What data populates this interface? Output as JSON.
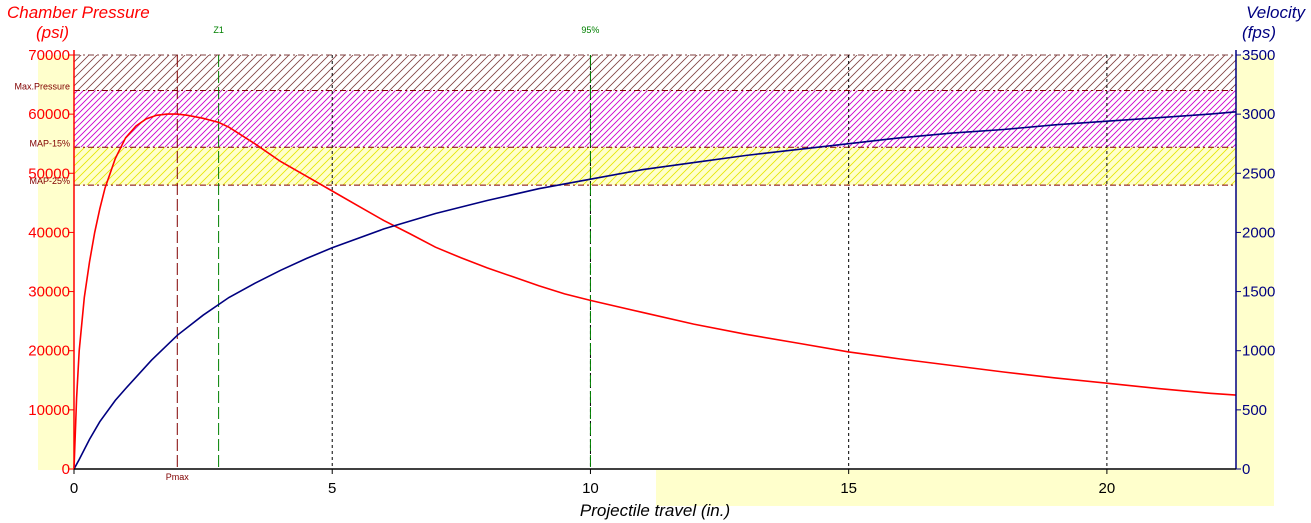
{
  "chart_data": {
    "type": "line",
    "xlabel": "Projectile travel (in.)",
    "xlim": [
      0,
      22.5
    ],
    "x_ticks": [
      0,
      5,
      10,
      15,
      20
    ],
    "y_left": {
      "label_line1": "Chamber Pressure",
      "label_line2": "(psi)",
      "lim": [
        0,
        70000
      ],
      "ticks": [
        0,
        10000,
        20000,
        30000,
        40000,
        50000,
        60000,
        70000
      ],
      "color": "#ff0000"
    },
    "y_right": {
      "label_line1": "Velocity",
      "label_line2": "(fps)",
      "lim": [
        0,
        3500
      ],
      "ticks": [
        0,
        500,
        1000,
        1500,
        2000,
        2500,
        3000,
        3500
      ],
      "color": "#000080"
    },
    "grid": true,
    "series": [
      {
        "axis": "left",
        "color": "#ff0000",
        "x": [
          0,
          0.05,
          0.1,
          0.2,
          0.3,
          0.4,
          0.5,
          0.6,
          0.8,
          1.0,
          1.2,
          1.4,
          1.6,
          1.8,
          2.0,
          2.2,
          2.5,
          2.8,
          3.0,
          3.5,
          4.0,
          4.5,
          5.0,
          5.5,
          6.0,
          6.5,
          7.0,
          7.5,
          8.0,
          8.5,
          9.0,
          9.5,
          10.0,
          11.0,
          12.0,
          13.0,
          14.0,
          15.0,
          16.0,
          17.0,
          18.0,
          19.0,
          20.0,
          21.0,
          22.0,
          22.5
        ],
        "values": [
          0,
          12000,
          20000,
          29000,
          35000,
          40000,
          44000,
          47500,
          52500,
          56000,
          58000,
          59200,
          59800,
          60000,
          60000,
          59800,
          59300,
          58600,
          57800,
          55000,
          52000,
          49500,
          47000,
          44500,
          42000,
          39800,
          37500,
          35700,
          34000,
          32500,
          31000,
          29600,
          28500,
          26500,
          24500,
          22800,
          21300,
          19800,
          18600,
          17500,
          16400,
          15400,
          14500,
          13600,
          12800,
          12500
        ]
      },
      {
        "axis": "right",
        "color": "#000080",
        "x": [
          0,
          0.1,
          0.3,
          0.5,
          0.8,
          1.0,
          1.5,
          2.0,
          2.5,
          3.0,
          3.5,
          4.0,
          4.5,
          5.0,
          6.0,
          7.0,
          8.0,
          9.0,
          10.0,
          11.0,
          12.0,
          13.0,
          14.0,
          15.0,
          16.0,
          17.0,
          18.0,
          19.0,
          20.0,
          21.0,
          22.0,
          22.5
        ],
        "values": [
          0,
          80,
          250,
          400,
          580,
          680,
          920,
          1130,
          1300,
          1450,
          1570,
          1680,
          1780,
          1870,
          2030,
          2160,
          2270,
          2370,
          2450,
          2530,
          2590,
          2650,
          2700,
          2750,
          2800,
          2840,
          2870,
          2910,
          2940,
          2970,
          3000,
          3020
        ]
      }
    ],
    "bands": [
      {
        "from": 64000,
        "to": 70000,
        "color": "#804040",
        "fill": "none"
      },
      {
        "from": 54400,
        "to": 64000,
        "color": "#cc00cc",
        "fill": "none"
      },
      {
        "from": 48000,
        "to": 54400,
        "color": "#e6e600",
        "fill": "#ffffcc"
      }
    ],
    "h_markers": [
      {
        "label": "Max.Pressure",
        "value": 64000
      },
      {
        "label": "MAP-15%",
        "value": 54400
      },
      {
        "label": "MAP-25%",
        "value": 48000
      }
    ],
    "v_markers": [
      {
        "label": "Pmax",
        "x": 2.0,
        "color": "#800000",
        "label_position": "bottom"
      },
      {
        "label": "Z1",
        "x": 2.8,
        "color": "#008000",
        "label_position": "top"
      },
      {
        "label": "95%",
        "x": 10.0,
        "color": "#008000",
        "label_position": "top"
      }
    ]
  }
}
